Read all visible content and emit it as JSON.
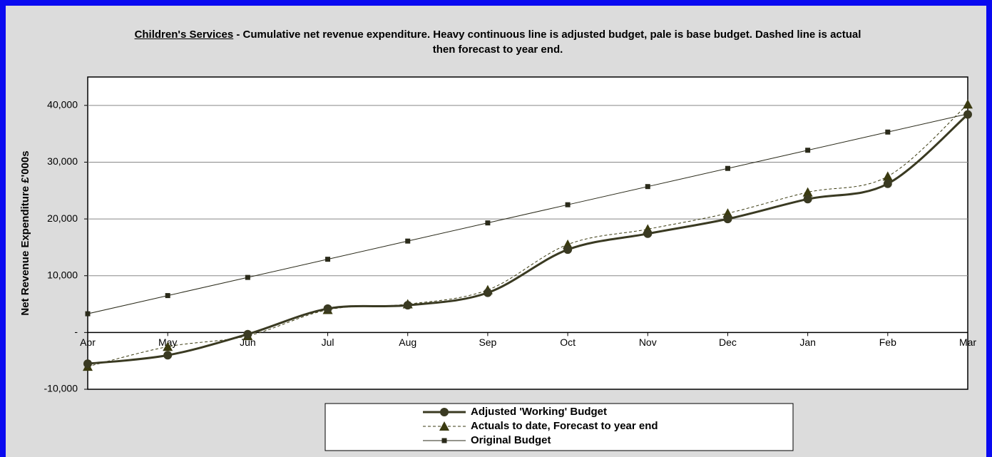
{
  "chart_data": {
    "type": "line",
    "title_underlined": "Children's Services",
    "title": "- Cumulative net revenue expenditure. Heavy continuous line is adjusted budget, pale is base budget. Dashed line is actual then forecast to year end.",
    "y_label": "Net Revenue Expenditure £'000s",
    "categories": [
      "Apr",
      "May",
      "Jun",
      "Jul",
      "Aug",
      "Sep",
      "Oct",
      "Nov",
      "Dec",
      "Jan",
      "Feb",
      "Mar"
    ],
    "ylim": [
      -10000,
      45000
    ],
    "yticks": [
      {
        "value": -10000,
        "label": "-10,000"
      },
      {
        "value": 0,
        "label": "-"
      },
      {
        "value": 10000,
        "label": "10,000"
      },
      {
        "value": 20000,
        "label": "20,000"
      },
      {
        "value": 30000,
        "label": "30,000"
      },
      {
        "value": 40000,
        "label": "40,000"
      }
    ],
    "grid": true,
    "legend": "bottom",
    "series": [
      {
        "name": "Adjusted 'Working' Budget",
        "color": "#3a3a22",
        "line_width": 3,
        "line_style": "solid",
        "marker": "circle",
        "smooth": true,
        "values": [
          -5500,
          -4000,
          -300,
          4200,
          4800,
          7000,
          14600,
          17400,
          20000,
          23500,
          26200,
          38400
        ]
      },
      {
        "name": "Actuals to date, Forecast to year end",
        "color": "#3a3a10",
        "line_width": 1,
        "line_style": "dashed",
        "marker": "triangle",
        "smooth": true,
        "values": [
          -6000,
          -2500,
          -600,
          4000,
          5000,
          7500,
          15500,
          18200,
          21000,
          24700,
          27500,
          40200
        ]
      },
      {
        "name": "Original Budget",
        "color": "#2a2a1a",
        "line_width": 1,
        "line_style": "solid",
        "marker": "square",
        "smooth": false,
        "values": [
          3300,
          6500,
          9700,
          12900,
          16100,
          19300,
          22500,
          25700,
          28900,
          32100,
          35300,
          38500
        ]
      }
    ]
  }
}
